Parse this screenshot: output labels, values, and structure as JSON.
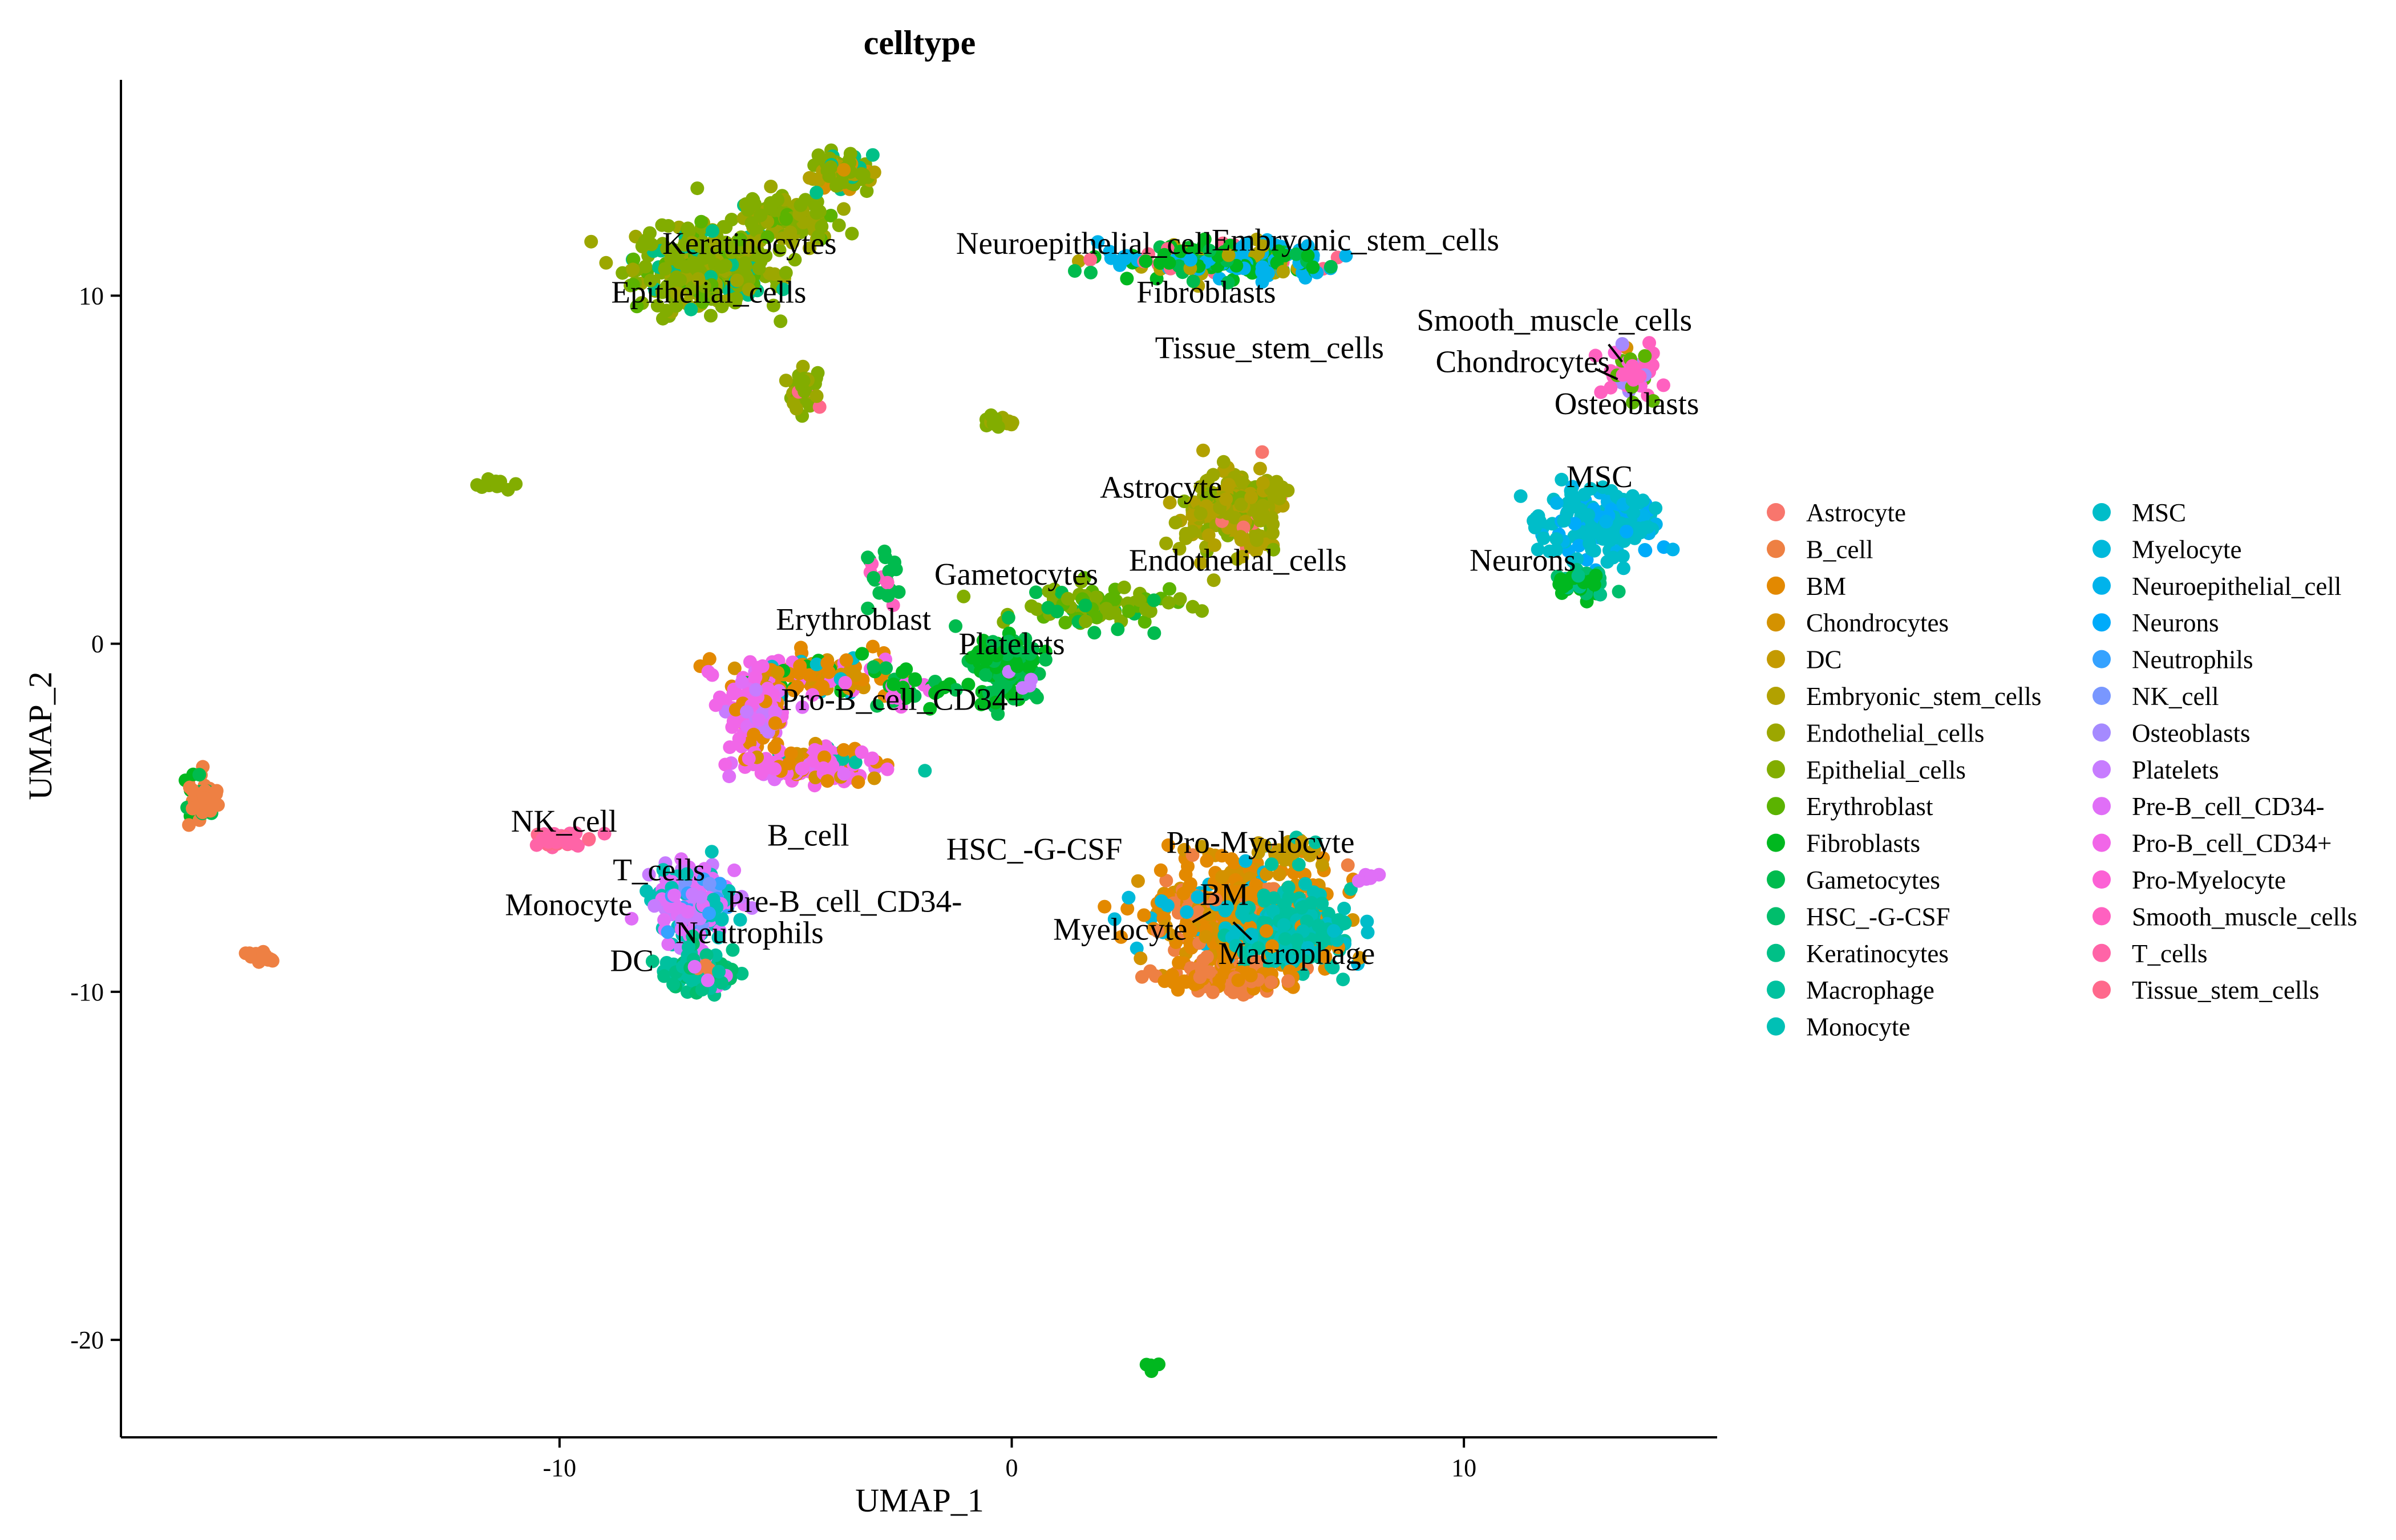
{
  "chart_data": {
    "type": "scatter",
    "title": "celltype",
    "xlabel": "UMAP_1",
    "ylabel": "UMAP_2",
    "xlim": [
      -19.7,
      15.6
    ],
    "ylim": [
      -22.8,
      16.2
    ],
    "xticks": [
      -10,
      0,
      10
    ],
    "yticks": [
      -20,
      -10,
      0,
      10
    ],
    "grid": false,
    "legend_position": "right",
    "series": [
      {
        "name": "Astrocyte",
        "color": "#F8766D"
      },
      {
        "name": "B_cell",
        "color": "#EE8043"
      },
      {
        "name": "BM",
        "color": "#E38900"
      },
      {
        "name": "Chondrocytes",
        "color": "#D49200"
      },
      {
        "name": "DC",
        "color": "#C49A00"
      },
      {
        "name": "Embryonic_stem_cells",
        "color": "#B2A100"
      },
      {
        "name": "Endothelial_cells",
        "color": "#9CA700"
      },
      {
        "name": "Epithelial_cells",
        "color": "#82AD00"
      },
      {
        "name": "Erythroblast",
        "color": "#5BB300"
      },
      {
        "name": "Fibroblasts",
        "color": "#00B81F"
      },
      {
        "name": "Gametocytes",
        "color": "#00BB4E"
      },
      {
        "name": "HSC_-G-CSF",
        "color": "#00BE6C"
      },
      {
        "name": "Keratinocytes",
        "color": "#00C087"
      },
      {
        "name": "Macrophage",
        "color": "#00C19F"
      },
      {
        "name": "Monocyte",
        "color": "#00C0B5"
      },
      {
        "name": "MSC",
        "color": "#00BDC9"
      },
      {
        "name": "Myelocyte",
        "color": "#00B9DB"
      },
      {
        "name": "Neuroepithelial_cell",
        "color": "#00B3EB"
      },
      {
        "name": "Neurons",
        "color": "#00ABFA"
      },
      {
        "name": "Neutrophils",
        "color": "#35A2FF"
      },
      {
        "name": "NK_cell",
        "color": "#7997FF"
      },
      {
        "name": "Osteoblasts",
        "color": "#A58AFF"
      },
      {
        "name": "Platelets",
        "color": "#C77CFF"
      },
      {
        "name": "Pre-B_cell_CD34-",
        "color": "#E06FF7"
      },
      {
        "name": "Pro-B_cell_CD34+",
        "color": "#F166E8"
      },
      {
        "name": "Pro-Myelocyte",
        "color": "#FC61D5"
      },
      {
        "name": "Smooth_muscle_cells",
        "color": "#FF61C0"
      },
      {
        "name": "T_cells",
        "color": "#FF64A7"
      },
      {
        "name": "Tissue_stem_cells",
        "color": "#FF698C"
      }
    ],
    "clusters": [
      {
        "cx": -6.8,
        "cy": 10.8,
        "sx": 1.0,
        "sy": 0.8,
        "n": 320,
        "types": [
          {
            "t": "Epithelial_cells",
            "w": 6
          },
          {
            "t": "Endothelial_cells",
            "w": 2
          },
          {
            "t": "Keratinocytes",
            "w": 1
          },
          {
            "t": "Erythroblast",
            "w": 1
          }
        ]
      },
      {
        "cx": -5.0,
        "cy": 12.2,
        "sx": 0.7,
        "sy": 0.5,
        "n": 110,
        "types": [
          {
            "t": "Epithelial_cells",
            "w": 5
          },
          {
            "t": "Endothelial_cells",
            "w": 3
          },
          {
            "t": "Erythroblast",
            "w": 1
          }
        ]
      },
      {
        "cx": -3.8,
        "cy": 13.6,
        "sx": 0.4,
        "sy": 0.4,
        "n": 90,
        "types": [
          {
            "t": "Epithelial_cells",
            "w": 5
          },
          {
            "t": "Embryonic_stem_cells",
            "w": 2
          },
          {
            "t": "Keratinocytes",
            "w": 1
          },
          {
            "t": "Chondrocytes",
            "w": 0.4
          }
        ]
      },
      {
        "cx": -4.6,
        "cy": 7.4,
        "sx": 0.25,
        "sy": 0.4,
        "n": 35,
        "types": [
          {
            "t": "Epithelial_cells",
            "w": 5
          },
          {
            "t": "Endothelial_cells",
            "w": 2
          },
          {
            "t": "Tissue_stem_cells",
            "w": 0.5
          }
        ]
      },
      {
        "cx": -11.4,
        "cy": 4.6,
        "sx": 0.25,
        "sy": 0.08,
        "n": 16,
        "types": [
          {
            "t": "Epithelial_cells",
            "w": 1
          }
        ]
      },
      {
        "cx": -0.2,
        "cy": 6.4,
        "sx": 0.25,
        "sy": 0.12,
        "n": 14,
        "types": [
          {
            "t": "Endothelial_cells",
            "w": 1
          },
          {
            "t": "Epithelial_cells",
            "w": 1
          }
        ]
      },
      {
        "cx": 4.6,
        "cy": 11.0,
        "sx": 1.7,
        "sy": 0.35,
        "n": 210,
        "types": [
          {
            "t": "Fibroblasts",
            "w": 3
          },
          {
            "t": "Neuroepithelial_cell",
            "w": 3
          },
          {
            "t": "Embryonic_stem_cells",
            "w": 2
          },
          {
            "t": "Tissue_stem_cells",
            "w": 1
          },
          {
            "t": "Gametocytes",
            "w": 1
          }
        ]
      },
      {
        "cx": 4.9,
        "cy": 3.8,
        "sx": 0.7,
        "sy": 0.7,
        "n": 240,
        "types": [
          {
            "t": "Endothelial_cells",
            "w": 3
          },
          {
            "t": "Embryonic_stem_cells",
            "w": 3
          },
          {
            "t": "Astrocyte",
            "w": 0.3
          },
          {
            "t": "Epithelial_cells",
            "w": 1
          }
        ]
      },
      {
        "cx": 2.0,
        "cy": 1.0,
        "sx": 1.3,
        "sy": 0.4,
        "n": 90,
        "types": [
          {
            "t": "Epithelial_cells",
            "w": 2
          },
          {
            "t": "Gametocytes",
            "w": 1
          },
          {
            "t": "Erythroblast",
            "w": 2
          }
        ]
      },
      {
        "cx": 13.7,
        "cy": 7.8,
        "sx": 0.35,
        "sy": 0.5,
        "n": 60,
        "types": [
          {
            "t": "Smooth_muscle_cells",
            "w": 3
          },
          {
            "t": "Chondrocytes",
            "w": 1
          },
          {
            "t": "Osteoblasts",
            "w": 1
          },
          {
            "t": "Erythroblast",
            "w": 1
          },
          {
            "t": "Pro-Myelocyte",
            "w": 1
          }
        ]
      },
      {
        "cx": 13.0,
        "cy": 3.4,
        "sx": 0.9,
        "sy": 0.7,
        "n": 160,
        "types": [
          {
            "t": "MSC",
            "w": 4
          },
          {
            "t": "Neuroepithelial_cell",
            "w": 1
          },
          {
            "t": "Neurons",
            "w": 1
          }
        ]
      },
      {
        "cx": 12.6,
        "cy": 1.8,
        "sx": 0.4,
        "sy": 0.3,
        "n": 40,
        "types": [
          {
            "t": "Fibroblasts",
            "w": 2
          },
          {
            "t": "HSC_-G-CSF",
            "w": 1
          },
          {
            "t": "Keratinocytes",
            "w": 1
          }
        ]
      },
      {
        "cx": -0.1,
        "cy": -0.6,
        "sx": 0.45,
        "sy": 0.7,
        "n": 140,
        "types": [
          {
            "t": "Gametocytes",
            "w": 3
          },
          {
            "t": "Fibroblasts",
            "w": 2
          },
          {
            "t": "Platelets",
            "w": 0.3
          }
        ]
      },
      {
        "cx": -2.8,
        "cy": 1.8,
        "sx": 0.3,
        "sy": 0.7,
        "n": 22,
        "types": [
          {
            "t": "Gametocytes",
            "w": 2
          },
          {
            "t": "Smooth_muscle_cells",
            "w": 0.3
          }
        ]
      },
      {
        "cx": -4.5,
        "cy": -0.9,
        "sx": 1.2,
        "sy": 0.4,
        "n": 130,
        "types": [
          {
            "t": "BM",
            "w": 3
          },
          {
            "t": "Chondrocytes",
            "w": 2
          },
          {
            "t": "Pro-B_cell_CD34+",
            "w": 2
          },
          {
            "t": "MSC",
            "w": 1
          },
          {
            "t": "Fibroblasts",
            "w": 1
          }
        ]
      },
      {
        "cx": -5.7,
        "cy": -2.0,
        "sx": 0.4,
        "sy": 0.7,
        "n": 110,
        "types": [
          {
            "t": "Pro-B_cell_CD34+",
            "w": 3
          },
          {
            "t": "Pre-B_cell_CD34-",
            "w": 2
          },
          {
            "t": "Platelets",
            "w": 1
          },
          {
            "t": "BM",
            "w": 1
          }
        ]
      },
      {
        "cx": -4.4,
        "cy": -3.5,
        "sx": 1.0,
        "sy": 0.35,
        "n": 150,
        "types": [
          {
            "t": "Pro-B_cell_CD34+",
            "w": 4
          },
          {
            "t": "Pre-B_cell_CD34-",
            "w": 1
          },
          {
            "t": "BM",
            "w": 1
          },
          {
            "t": "Chondrocytes",
            "w": 1
          },
          {
            "t": "Macrophage",
            "w": 0.5
          }
        ]
      },
      {
        "cx": -2.3,
        "cy": -1.2,
        "sx": 0.6,
        "sy": 0.4,
        "n": 40,
        "types": [
          {
            "t": "Fibroblasts",
            "w": 2
          },
          {
            "t": "Gametocytes",
            "w": 1
          },
          {
            "t": "Pro-B_cell_CD34+",
            "w": 1
          }
        ]
      },
      {
        "cx": -17.9,
        "cy": -4.5,
        "sx": 0.25,
        "sy": 0.55,
        "n": 45,
        "types": [
          {
            "t": "B_cell",
            "w": 3
          },
          {
            "t": "Fibroblasts",
            "w": 1
          },
          {
            "t": "Gametocytes",
            "w": 1
          }
        ]
      },
      {
        "cx": -16.6,
        "cy": -9.0,
        "sx": 0.15,
        "sy": 0.12,
        "n": 20,
        "types": [
          {
            "t": "B_cell",
            "w": 1
          }
        ]
      },
      {
        "cx": -10.0,
        "cy": -5.6,
        "sx": 0.35,
        "sy": 0.15,
        "n": 40,
        "types": [
          {
            "t": "T_cells",
            "w": 3
          },
          {
            "t": "Tissue_stem_cells",
            "w": 1
          }
        ]
      },
      {
        "cx": -7.0,
        "cy": -7.4,
        "sx": 0.6,
        "sy": 0.7,
        "n": 170,
        "types": [
          {
            "t": "Pre-B_cell_CD34-",
            "w": 3
          },
          {
            "t": "Monocyte",
            "w": 2
          },
          {
            "t": "Neutrophils",
            "w": 1
          },
          {
            "t": "Platelets",
            "w": 1
          },
          {
            "t": "NK_cell",
            "w": 0.5
          }
        ]
      },
      {
        "cx": -6.9,
        "cy": -9.4,
        "sx": 0.5,
        "sy": 0.4,
        "n": 110,
        "types": [
          {
            "t": "Macrophage",
            "w": 3
          },
          {
            "t": "Keratinocytes",
            "w": 2
          },
          {
            "t": "HSC_-G-CSF",
            "w": 1
          },
          {
            "t": "B_cell",
            "w": 0.6
          },
          {
            "t": "Pre-B_cell_CD34-",
            "w": 1
          }
        ]
      },
      {
        "cx": 5.0,
        "cy": -7.8,
        "sx": 1.3,
        "sy": 0.9,
        "n": 460,
        "types": [
          {
            "t": "BM",
            "w": 4
          },
          {
            "t": "B_cell",
            "w": 1.5
          },
          {
            "t": "Chondrocytes",
            "w": 2
          },
          {
            "t": "Myelocyte",
            "w": 0.5
          }
        ]
      },
      {
        "cx": 6.2,
        "cy": -8.3,
        "sx": 0.9,
        "sy": 0.7,
        "n": 200,
        "types": [
          {
            "t": "Macrophage",
            "w": 3
          },
          {
            "t": "Monocyte",
            "w": 2
          },
          {
            "t": "MSC",
            "w": 1
          },
          {
            "t": "BM",
            "w": 1
          }
        ]
      },
      {
        "cx": 4.8,
        "cy": -9.6,
        "sx": 1.0,
        "sy": 0.3,
        "n": 90,
        "types": [
          {
            "t": "B_cell",
            "w": 2
          },
          {
            "t": "BM",
            "w": 2
          }
        ]
      },
      {
        "cx": 6.0,
        "cy": -6.0,
        "sx": 0.5,
        "sy": 0.3,
        "n": 30,
        "types": [
          {
            "t": "DC",
            "w": 2
          },
          {
            "t": "Macrophage",
            "w": 1
          }
        ]
      },
      {
        "cx": 7.9,
        "cy": -6.7,
        "sx": 0.2,
        "sy": 0.1,
        "n": 8,
        "types": [
          {
            "t": "Pre-B_cell_CD34-",
            "w": 1
          }
        ]
      },
      {
        "cx": 3.1,
        "cy": -20.8,
        "sx": 0.12,
        "sy": 0.08,
        "n": 6,
        "types": [
          {
            "t": "Fibroblasts",
            "w": 1
          }
        ]
      }
    ],
    "annotations": [
      {
        "text": "Keratinocytes",
        "x": -5.8,
        "y": 11.2
      },
      {
        "text": "Epithelial_cells",
        "x": -6.7,
        "y": 9.8
      },
      {
        "text": "Neuroepithelial_cell",
        "x": 1.6,
        "y": 11.2
      },
      {
        "text": "Embryonic_stem_cells",
        "x": 7.6,
        "y": 11.3
      },
      {
        "text": "Fibroblasts",
        "x": 4.3,
        "y": 9.8
      },
      {
        "text": "Tissue_stem_cells",
        "x": 5.7,
        "y": 8.2
      },
      {
        "text": "Smooth_muscle_cells",
        "x": 12.0,
        "y": 9.0
      },
      {
        "text": "Chondrocytes",
        "x": 11.3,
        "y": 7.8
      },
      {
        "text": "Osteoblasts",
        "x": 13.6,
        "y": 6.6
      },
      {
        "text": "MSC",
        "x": 13.0,
        "y": 4.5
      },
      {
        "text": "Astrocyte",
        "x": 3.3,
        "y": 4.2
      },
      {
        "text": "Endothelial_cells",
        "x": 5.0,
        "y": 2.1
      },
      {
        "text": "Neurons",
        "x": 11.3,
        "y": 2.1
      },
      {
        "text": "Gametocytes",
        "x": 0.1,
        "y": 1.7
      },
      {
        "text": "Erythroblast",
        "x": -3.5,
        "y": 0.4
      },
      {
        "text": "Platelets",
        "x": 0.0,
        "y": -0.3
      },
      {
        "text": "Pro-B_cell_CD34+",
        "x": -2.4,
        "y": -1.9
      },
      {
        "text": "NK_cell",
        "x": -9.9,
        "y": -5.4
      },
      {
        "text": "B_cell",
        "x": -4.5,
        "y": -5.8
      },
      {
        "text": "T_cells",
        "x": -7.8,
        "y": -6.8
      },
      {
        "text": "HSC_-G-CSF",
        "x": 0.5,
        "y": -6.2
      },
      {
        "text": "Pro-Myelocyte",
        "x": 5.5,
        "y": -6.0
      },
      {
        "text": "Monocyte",
        "x": -9.8,
        "y": -7.8
      },
      {
        "text": "Pre-B_cell_CD34-",
        "x": -3.7,
        "y": -7.7
      },
      {
        "text": "BM",
        "x": 4.7,
        "y": -7.5
      },
      {
        "text": "Myelocyte",
        "x": 2.4,
        "y": -8.5
      },
      {
        "text": "Neutrophils",
        "x": -5.8,
        "y": -8.6
      },
      {
        "text": "DC",
        "x": -8.4,
        "y": -9.4
      },
      {
        "text": "Macrophage",
        "x": 6.3,
        "y": -9.2
      }
    ],
    "leader_lines": [
      {
        "from": [
          13.5,
          8.1
        ],
        "to": [
          13.2,
          8.6
        ]
      },
      {
        "from": [
          13.4,
          7.6
        ],
        "to": [
          12.9,
          7.9
        ]
      },
      {
        "from": [
          4.4,
          -7.7
        ],
        "to": [
          4.0,
          -8.0
        ]
      },
      {
        "from": [
          4.9,
          -8.0
        ],
        "to": [
          5.3,
          -8.5
        ]
      }
    ]
  }
}
